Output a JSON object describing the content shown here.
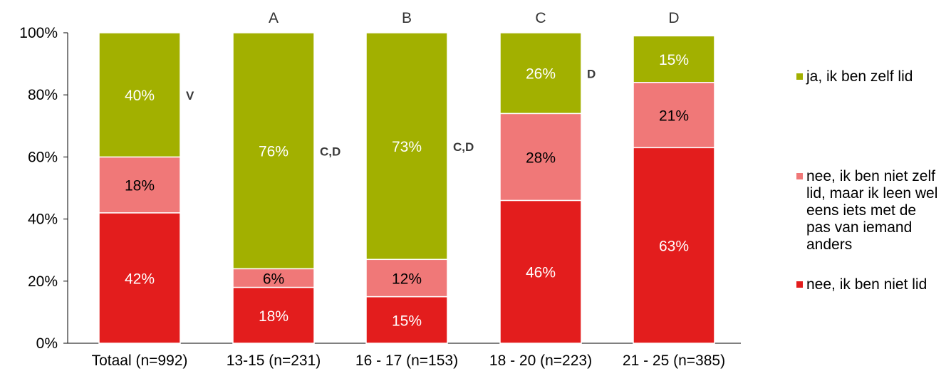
{
  "chart_data": {
    "type": "bar",
    "stacked": true,
    "normalized": true,
    "categories": [
      "Totaal (n=992)",
      "13-15 (n=231)",
      "16 - 17 (n=153)",
      "18 - 20 (n=223)",
      "21 - 25 (n=385)"
    ],
    "group_letters": [
      "",
      "A",
      "B",
      "C",
      "D"
    ],
    "series": [
      {
        "name": "nee, ik ben niet lid",
        "color": "#e31d1d",
        "values": [
          42,
          18,
          15,
          46,
          63
        ],
        "labels": [
          "42%",
          "18%",
          "15%",
          "46%",
          "63%"
        ]
      },
      {
        "name": "nee, ik ben niet zelf lid, maar ik leen wel eens iets met de pas van iemand anders",
        "color": "#f07878",
        "values": [
          18,
          6,
          12,
          28,
          21
        ],
        "labels": [
          "18%",
          "6%",
          "12%",
          "28%",
          "21%"
        ]
      },
      {
        "name": "ja, ik ben zelf lid",
        "color": "#a2b000",
        "values": [
          40,
          76,
          73,
          26,
          15
        ],
        "labels": [
          "40%",
          "76%",
          "73%",
          "26%",
          "15%"
        ]
      }
    ],
    "significance": [
      "V",
      "C,D",
      "C,D",
      "D",
      ""
    ],
    "yticks": [
      "0%",
      "20%",
      "40%",
      "60%",
      "80%",
      "100%"
    ],
    "ylim": [
      0,
      100
    ],
    "grid": false,
    "legend_position": "right"
  },
  "legend": {
    "item_top": "ja, ik ben zelf lid",
    "item_mid_lines": [
      "nee, ik ben niet zelf",
      "lid, maar ik leen wel",
      "eens iets met de",
      "pas van iemand",
      "anders"
    ],
    "item_bottom": "nee, ik ben niet lid"
  }
}
